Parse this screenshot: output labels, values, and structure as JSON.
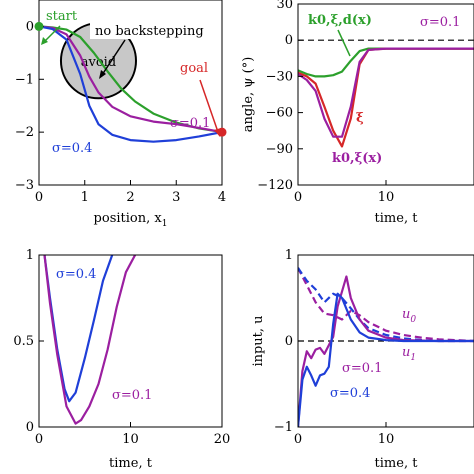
{
  "chart_data": [
    {
      "type": "line",
      "panel": "trajectory",
      "xlabel": "position, x",
      "xlabel_sub": "1",
      "xlim": [
        0,
        4
      ],
      "ylim": [
        -3,
        0.5
      ],
      "xticks": [
        "0",
        "1",
        "2",
        "3",
        "4"
      ],
      "yticks": [
        "0",
        "−1",
        "−2",
        "−3"
      ],
      "obstacle": {
        "label": "avoid",
        "cx": 1.3,
        "cy": -0.65,
        "r": 0.82
      },
      "start": {
        "label": "start",
        "x": 0,
        "y": 0
      },
      "goal": {
        "label": "goal",
        "x": 4,
        "y": -2
      },
      "series": [
        {
          "name": "no backstepping",
          "color": "#2ca02c",
          "x": [
            0,
            0.3,
            0.6,
            0.9,
            1.2,
            1.5,
            1.8,
            2.1,
            2.5,
            3.0,
            3.5,
            4.0
          ],
          "y": [
            0,
            -0.02,
            -0.06,
            -0.2,
            -0.5,
            -0.85,
            -1.18,
            -1.42,
            -1.65,
            -1.82,
            -1.93,
            -2.0
          ]
        },
        {
          "name": "σ=0.1",
          "color": "#9b1fa0",
          "x": [
            0,
            0.3,
            0.6,
            0.9,
            1.1,
            1.3,
            1.6,
            2.0,
            2.5,
            3.0,
            3.5,
            4.0
          ],
          "y": [
            0,
            -0.03,
            -0.15,
            -0.55,
            -0.95,
            -1.25,
            -1.52,
            -1.7,
            -1.8,
            -1.85,
            -1.92,
            -2.0
          ]
        },
        {
          "name": "σ=0.4",
          "color": "#1f3fd8",
          "x": [
            0,
            0.3,
            0.6,
            0.9,
            1.1,
            1.3,
            1.6,
            2.0,
            2.5,
            3.0,
            3.5,
            4.0
          ],
          "y": [
            0,
            -0.05,
            -0.25,
            -0.9,
            -1.5,
            -1.85,
            -2.05,
            -2.15,
            -2.18,
            -2.15,
            -2.08,
            -2.0
          ]
        }
      ],
      "annotations": [
        {
          "text": "start",
          "color": "#2ca02c"
        },
        {
          "text": "no backstepping",
          "color": "#000000"
        },
        {
          "text": "goal",
          "color": "#d62728"
        },
        {
          "text": "σ=0.1",
          "color": "#9b1fa0"
        },
        {
          "text": "σ=0.4",
          "color": "#1f3fd8"
        }
      ]
    },
    {
      "type": "line",
      "panel": "angle",
      "xlabel": "time, t",
      "ylabel": "angle, ψ (°)",
      "xlim": [
        0,
        20
      ],
      "ylim": [
        -120,
        30
      ],
      "xticks": [
        "0",
        "10"
      ],
      "xtick_values": [
        0,
        10
      ],
      "yticks": [
        "30",
        "0",
        "−30",
        "−60",
        "−90",
        "−120"
      ],
      "ytick_values": [
        30,
        0,
        -30,
        -60,
        -90,
        -120
      ],
      "series": [
        {
          "name": "k0,ξ,d(x)",
          "color": "#2ca02c",
          "x": [
            0,
            1,
            2,
            3,
            4,
            5,
            6,
            7,
            8,
            10,
            12,
            16,
            20
          ],
          "y": [
            -25,
            -28,
            -30,
            -30,
            -29,
            -26,
            -17,
            -9,
            -7,
            -7,
            -7,
            -7,
            -7
          ]
        },
        {
          "name": "ξ",
          "color": "#d62728",
          "x": [
            0,
            1,
            2,
            3,
            4,
            5,
            6,
            7,
            8,
            10,
            12,
            16,
            20
          ],
          "y": [
            -27,
            -30,
            -36,
            -55,
            -75,
            -88,
            -65,
            -20,
            -8,
            -7,
            -7,
            -7,
            -7
          ]
        },
        {
          "name": "k0,ξ(x)",
          "color": "#9b1fa0",
          "x": [
            0,
            1,
            2,
            3,
            4,
            5,
            6,
            7,
            8,
            10,
            12,
            16,
            20
          ],
          "y": [
            -28,
            -33,
            -42,
            -65,
            -80,
            -80,
            -55,
            -18,
            -8,
            -7,
            -7,
            -7,
            -7
          ]
        }
      ],
      "annotations": [
        {
          "text": "σ=0.1",
          "color": "#9b1fa0"
        },
        {
          "text": "k0,ξ,d(x)",
          "color": "#2ca02c"
        },
        {
          "text": "ξ",
          "color": "#d62728"
        },
        {
          "text": "k0,ξ(x)",
          "color": "#9b1fa0"
        }
      ]
    },
    {
      "type": "line",
      "panel": "barrier",
      "xlabel": "time, t",
      "xlim": [
        0,
        20
      ],
      "ylim": [
        0,
        1
      ],
      "xticks": [
        "0",
        "10",
        "20"
      ],
      "xtick_values": [
        0,
        10,
        20
      ],
      "yticks": [
        "1",
        "0.5",
        "0"
      ],
      "ytick_values": [
        1,
        0.5,
        0
      ],
      "series": [
        {
          "name": "σ=0.4",
          "color": "#1f3fd8",
          "x": [
            0.6,
            1.2,
            2,
            2.8,
            3.3,
            4,
            5,
            6,
            7,
            8
          ],
          "y": [
            1.0,
            0.75,
            0.45,
            0.22,
            0.15,
            0.2,
            0.4,
            0.62,
            0.85,
            1.0
          ]
        },
        {
          "name": "σ=0.1",
          "color": "#9b1fa0",
          "x": [
            0.6,
            1.2,
            2,
            3,
            4,
            4.6,
            5.5,
            6.5,
            7.5,
            8.5,
            9.5,
            10.5
          ],
          "y": [
            1.0,
            0.72,
            0.42,
            0.12,
            0.02,
            0.04,
            0.12,
            0.25,
            0.45,
            0.7,
            0.9,
            1.0
          ]
        }
      ],
      "annotations": [
        {
          "text": "σ=0.4",
          "color": "#1f3fd8"
        },
        {
          "text": "σ=0.1",
          "color": "#9b1fa0"
        }
      ]
    },
    {
      "type": "line",
      "panel": "input",
      "xlabel": "time, t",
      "ylabel": "input, u",
      "xlim": [
        0,
        20
      ],
      "ylim": [
        -1,
        1
      ],
      "xticks": [
        "0",
        "10"
      ],
      "xtick_values": [
        0,
        10
      ],
      "yticks": [
        "1",
        "0",
        "−1"
      ],
      "ytick_values": [
        1,
        0,
        -1
      ],
      "series": [
        {
          "name": "u0 σ=0.1",
          "color": "#9b1fa0",
          "dashed": true,
          "x": [
            0,
            1,
            2,
            3,
            4,
            5,
            6,
            7,
            8,
            10,
            12,
            14,
            16,
            20
          ],
          "y": [
            0.85,
            0.65,
            0.45,
            0.32,
            0.3,
            0.25,
            0.35,
            0.3,
            0.22,
            0.12,
            0.07,
            0.04,
            0.02,
            0.0
          ]
        },
        {
          "name": "u0 σ=0.4",
          "color": "#1f3fd8",
          "dashed": true,
          "x": [
            0,
            1,
            2,
            3,
            4,
            5,
            6,
            7,
            8,
            10,
            12,
            14,
            16,
            20
          ],
          "y": [
            0.85,
            0.7,
            0.6,
            0.45,
            0.55,
            0.5,
            0.38,
            0.25,
            0.15,
            0.07,
            0.03,
            0.01,
            0.0,
            0.0
          ]
        },
        {
          "name": "u1 σ=0.1",
          "color": "#9b1fa0",
          "dashed": false,
          "x": [
            0,
            0.5,
            1,
            1.5,
            2,
            2.5,
            3,
            3.5,
            4,
            4.5,
            5.5,
            6,
            7,
            8,
            10,
            12,
            16,
            20
          ],
          "y": [
            -1.0,
            -0.35,
            -0.12,
            -0.2,
            -0.1,
            -0.08,
            -0.15,
            -0.05,
            0.05,
            0.4,
            0.75,
            0.5,
            0.25,
            0.12,
            0.04,
            0.01,
            0.0,
            0.0
          ]
        },
        {
          "name": "u1 σ=0.4",
          "color": "#1f3fd8",
          "dashed": false,
          "x": [
            0,
            0.5,
            1,
            1.5,
            2,
            2.5,
            3,
            3.5,
            4,
            4.5,
            5,
            6,
            7,
            8,
            10,
            12,
            20
          ],
          "y": [
            -1.0,
            -0.45,
            -0.3,
            -0.4,
            -0.52,
            -0.4,
            -0.38,
            -0.3,
            0.2,
            0.55,
            0.5,
            0.25,
            0.1,
            0.04,
            0.01,
            0.0,
            0.0
          ]
        }
      ],
      "annotations": [
        {
          "text": "u",
          "sub": "0",
          "color": "#9b1fa0"
        },
        {
          "text": "u",
          "sub": "1",
          "color": "#9b1fa0"
        },
        {
          "text": "σ=0.1",
          "color": "#9b1fa0"
        },
        {
          "text": "σ=0.4",
          "color": "#1f3fd8"
        }
      ]
    }
  ]
}
